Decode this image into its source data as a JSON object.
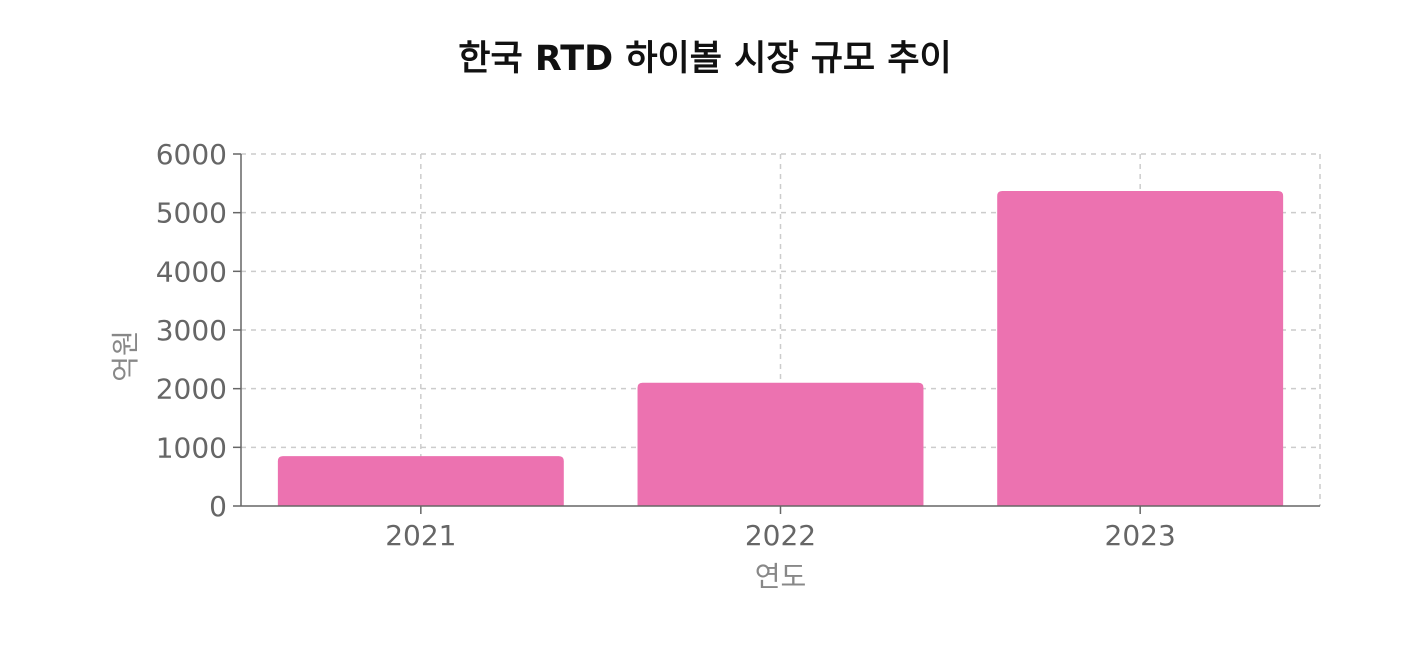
{
  "chart_data": {
    "type": "bar",
    "title": "한국 RTD 하이볼 시장 규모 추이",
    "xlabel": "연도",
    "ylabel": "억원",
    "categories": [
      "2021",
      "2022",
      "2023"
    ],
    "values": [
      850,
      2100,
      5370
    ],
    "ylim": [
      0,
      6000
    ],
    "yticks": [
      0,
      1000,
      2000,
      3000,
      4000,
      5000,
      6000
    ],
    "grid": true,
    "legend": "none",
    "bar_color": "#EC72B0"
  }
}
